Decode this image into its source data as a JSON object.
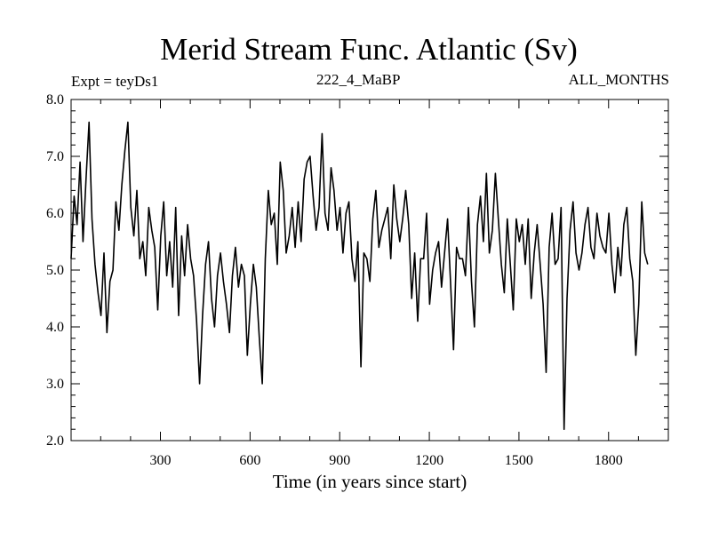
{
  "chart_data": {
    "type": "line",
    "title": "Merid Stream Func. Atlantic (Sv)",
    "expt_label": "Expt = teyDs1",
    "subtitle": "222_4_MaBP",
    "months_label": "ALL_MONTHS",
    "xlabel": "Time (in years since start)",
    "ylabel": "",
    "xlim": [
      1,
      2000
    ],
    "ylim": [
      2.0,
      8.0
    ],
    "xticks": [
      300,
      600,
      900,
      1200,
      1500,
      1800
    ],
    "xtick_labels": [
      "300",
      "600",
      "900",
      "1200",
      "1500",
      "1800"
    ],
    "yticks": [
      2.0,
      3.0,
      4.0,
      5.0,
      6.0,
      7.0,
      8.0
    ],
    "ytick_labels": [
      "2.0",
      "3.0",
      "4.0",
      "5.0",
      "6.0",
      "7.0",
      "8.0"
    ],
    "grid": false,
    "series": [
      {
        "name": "Merid Stream Func. Atlantic",
        "x_start": 1,
        "x_step": 10,
        "values": [
          5.2,
          6.3,
          5.8,
          6.9,
          5.5,
          6.6,
          7.6,
          5.9,
          5.1,
          4.6,
          4.2,
          5.3,
          3.9,
          4.8,
          5.0,
          6.2,
          5.7,
          6.5,
          7.1,
          7.6,
          6.1,
          5.6,
          6.4,
          5.2,
          5.5,
          4.9,
          6.1,
          5.7,
          5.4,
          4.3,
          5.6,
          6.2,
          4.9,
          5.5,
          4.7,
          6.1,
          4.2,
          5.6,
          4.9,
          5.8,
          5.2,
          4.9,
          4.1,
          3.0,
          4.2,
          5.1,
          5.5,
          4.5,
          4.0,
          4.9,
          5.3,
          4.8,
          4.4,
          3.9,
          4.9,
          5.4,
          4.7,
          5.1,
          4.9,
          3.5,
          4.4,
          5.1,
          4.7,
          3.8,
          3.0,
          5.2,
          6.4,
          5.8,
          6.0,
          5.1,
          6.9,
          6.4,
          5.3,
          5.6,
          6.1,
          5.4,
          6.2,
          5.5,
          6.6,
          6.9,
          7.0,
          6.3,
          5.7,
          6.1,
          7.4,
          6.0,
          5.7,
          6.8,
          6.4,
          5.7,
          6.1,
          5.3,
          6.0,
          6.2,
          5.2,
          4.8,
          5.5,
          3.3,
          5.3,
          5.2,
          4.8,
          5.9,
          6.4,
          5.4,
          5.7,
          5.9,
          6.1,
          5.2,
          6.5,
          5.9,
          5.5,
          5.9,
          6.4,
          5.8,
          4.5,
          5.3,
          4.1,
          5.2,
          5.2,
          6.0,
          4.4,
          5.0,
          5.3,
          5.5,
          4.7,
          5.3,
          5.9,
          4.8,
          3.6,
          5.4,
          5.2,
          5.2,
          4.9,
          6.1,
          4.8,
          4.0,
          5.8,
          6.3,
          5.5,
          6.7,
          5.3,
          5.7,
          6.7,
          5.9,
          5.1,
          4.6,
          5.9,
          5.1,
          4.3,
          5.9,
          5.5,
          5.8,
          5.1,
          5.9,
          4.5,
          5.3,
          5.8,
          5.1,
          4.4,
          3.2,
          5.4,
          6.0,
          5.1,
          5.2,
          6.1,
          2.2,
          4.5,
          5.7,
          6.2,
          5.3,
          5.0,
          5.3,
          5.8,
          6.1,
          5.4,
          5.2,
          6.0,
          5.6,
          5.4,
          5.3,
          6.0,
          5.1,
          4.6,
          5.4,
          4.9,
          5.8,
          6.1,
          5.2,
          4.8,
          3.5,
          4.4,
          6.2,
          5.3,
          5.1
        ]
      }
    ]
  }
}
